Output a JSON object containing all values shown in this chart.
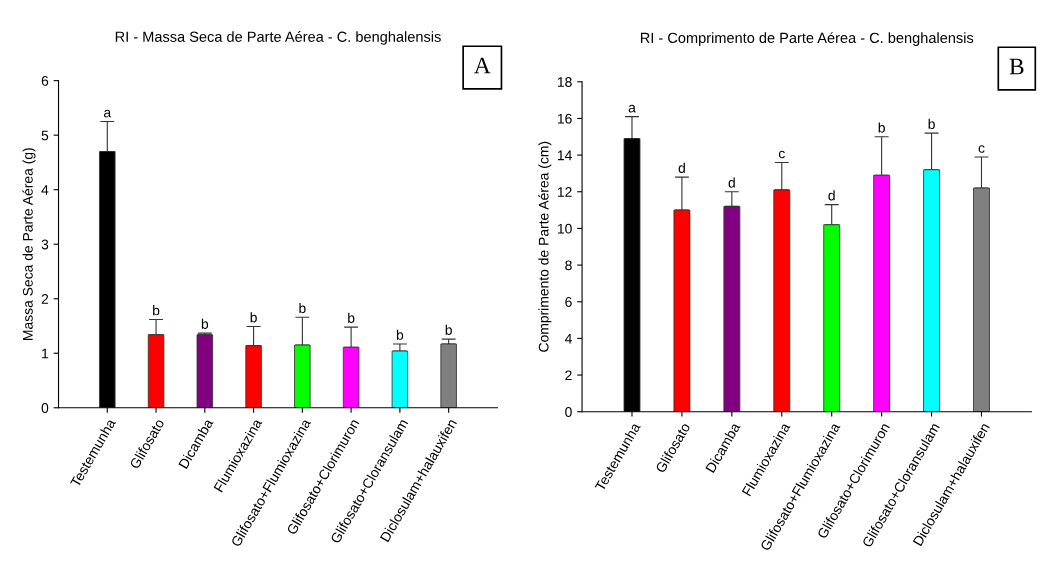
{
  "chart_data": [
    {
      "type": "bar",
      "title": "RI - Massa Seca de Parte Aérea - C. benghalensis",
      "ylabel": "Massa Seca de Parte Aérea (g)",
      "categories": [
        "Testemunha",
        "Glifosato",
        "Dicamba",
        "Flumioxazina",
        "Glifosato+Flumioxazina",
        "Glifosato+Clorimuron",
        "Glifosato+Cloransulam",
        "Diclosulam+halauxifen"
      ],
      "values": [
        4.7,
        1.34,
        1.34,
        1.14,
        1.15,
        1.11,
        1.04,
        1.17
      ],
      "errors": [
        [
          4.7,
          5.25
        ],
        [
          1.34,
          1.62
        ],
        [
          1.34,
          1.37
        ],
        [
          1.14,
          1.49
        ],
        [
          1.15,
          1.66
        ],
        [
          1.11,
          1.48
        ],
        [
          1.04,
          1.17
        ],
        [
          1.17,
          1.26
        ]
      ],
      "colors": [
        "#000000",
        "#ff0000",
        "#800080",
        "#ff0000",
        "#00ff00",
        "#ff00ff",
        "#00ffff",
        "#808080"
      ],
      "ylim": [
        0,
        6
      ],
      "yticks": [
        0,
        1,
        2,
        3,
        4,
        5,
        6
      ],
      "grid": false,
      "legend": false,
      "annotations": [
        "A",
        {
          "text": "a",
          "x": "Testemunha",
          "y": 5.25
        },
        {
          "text": "b",
          "x": "Glifosato",
          "y": 1.62
        },
        {
          "text": "b",
          "x": "Dicamba",
          "y": 1.37
        },
        {
          "text": "b",
          "x": "Flumioxazina",
          "y": 1.49
        },
        {
          "text": "b",
          "x": "Glifosato+Flumioxazina",
          "y": 1.66
        },
        {
          "text": "b",
          "x": "Glifosato+Clorimuron",
          "y": 1.48
        },
        {
          "text": "b",
          "x": "Glifosato+Cloransulam",
          "y": 1.17
        },
        {
          "text": "b",
          "x": "Diclosulam+halauxifen",
          "y": 1.26
        }
      ]
    },
    {
      "type": "bar",
      "title": "RI - Comprimento de Parte Aérea - C. benghalensis",
      "ylabel": "Comprimento de Parte Aérea (cm)",
      "categories": [
        "Testemunha",
        "Glifosato",
        "Dicamba",
        "Flumioxazina",
        "Glifosato+Flumioxazina",
        "Glifosato+Clorimuron",
        "Glifosato+Cloransulam",
        "Diclosulam+halauxifen"
      ],
      "values": [
        14.9,
        11.0,
        11.2,
        12.1,
        10.2,
        12.9,
        13.2,
        12.2
      ],
      "errors": [
        [
          14.9,
          16.1
        ],
        [
          11.0,
          12.8
        ],
        [
          11.2,
          12.0
        ],
        [
          12.1,
          13.6
        ],
        [
          10.2,
          11.3
        ],
        [
          12.9,
          15.0
        ],
        [
          13.2,
          15.2
        ],
        [
          12.2,
          13.9
        ]
      ],
      "colors": [
        "#000000",
        "#ff0000",
        "#800080",
        "#ff0000",
        "#00ff00",
        "#ff00ff",
        "#00ffff",
        "#808080"
      ],
      "ylim": [
        0,
        18
      ],
      "yticks": [
        0,
        2,
        4,
        6,
        8,
        10,
        12,
        14,
        16,
        18
      ],
      "grid": false,
      "legend": false,
      "annotations": [
        "B",
        {
          "text": "a",
          "x": "Testemunha",
          "y": 16.1
        },
        {
          "text": "d",
          "x": "Glifosato",
          "y": 12.8
        },
        {
          "text": "d",
          "x": "Dicamba",
          "y": 12.0
        },
        {
          "text": "c",
          "x": "Flumioxazina",
          "y": 13.6
        },
        {
          "text": "d",
          "x": "Glifosato+Flumioxazina",
          "y": 11.3
        },
        {
          "text": "b",
          "x": "Glifosato+Clorimuron",
          "y": 15.0
        },
        {
          "text": "b",
          "x": "Glifosato+Cloransulam",
          "y": 15.2
        },
        {
          "text": "c",
          "x": "Diclosulam+halauxifen",
          "y": 13.9
        }
      ]
    }
  ]
}
